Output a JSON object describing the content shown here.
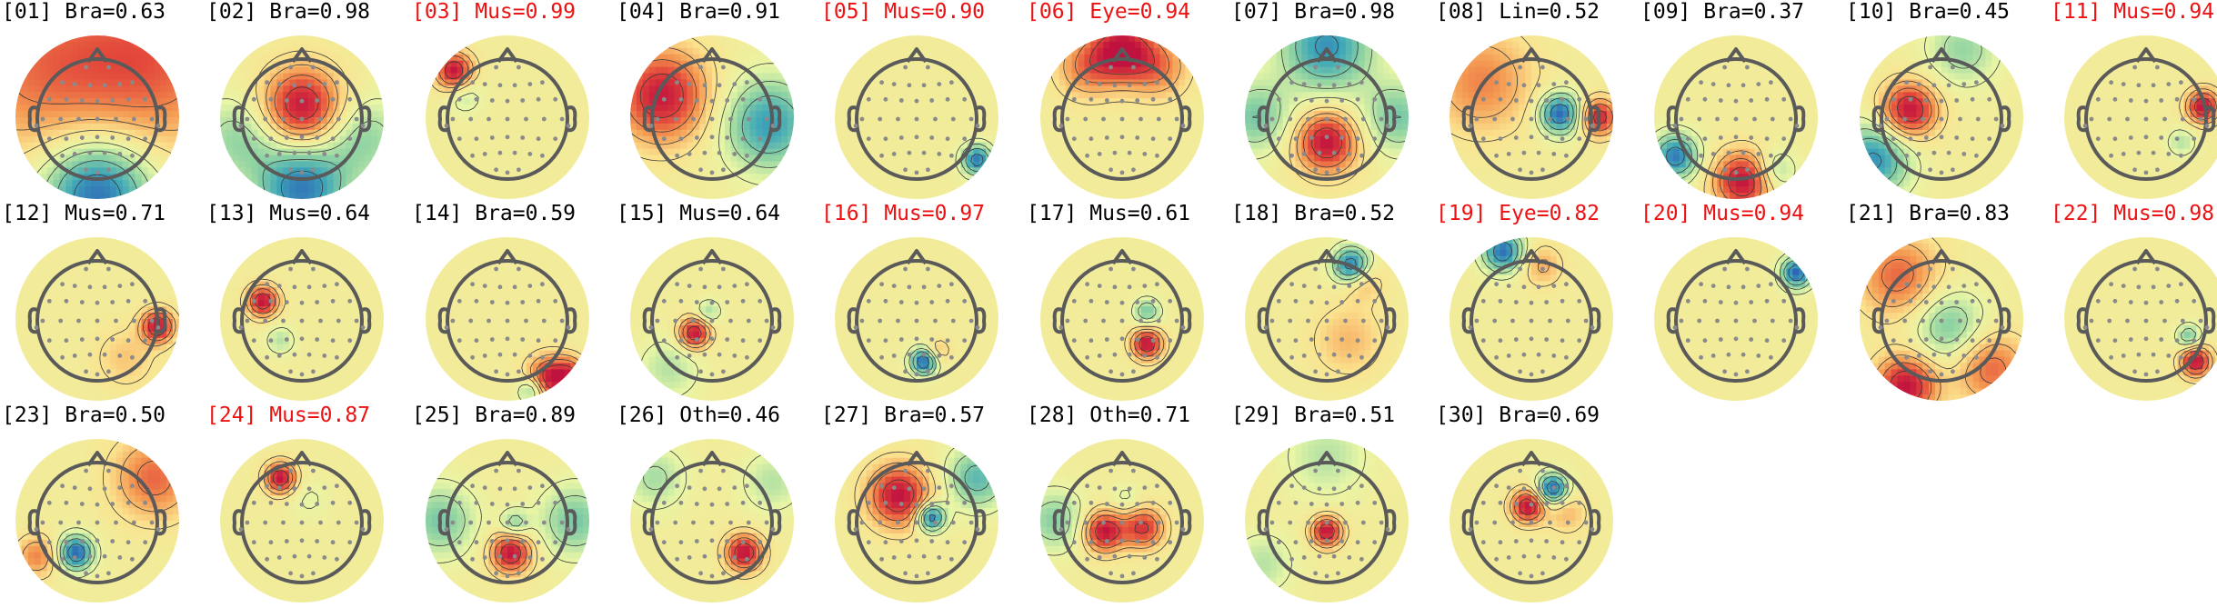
{
  "colors": {
    "label_default": "#000000",
    "label_flagged": "#ee1111",
    "sensor": "#8a8a8a",
    "head_outline": "#5a5a5a",
    "colormap": [
      "#2f64b7",
      "#3ea7b8",
      "#8fd3a3",
      "#e8f6a6",
      "#fbe28e",
      "#f49a52",
      "#e2463a",
      "#c0123f"
    ]
  },
  "components": [
    {
      "title": "[01] Bra=0.63",
      "flagged": false,
      "blobs": [
        {
          "dx": 0.8,
          "dy": -0.8,
          "v": 0.6,
          "s": 0.9
        },
        {
          "dx": -0.9,
          "dy": -0.7,
          "v": 0.5,
          "s": 0.9
        },
        {
          "dx": 0,
          "dy": 1.05,
          "v": -1.0,
          "s": 0.55
        }
      ]
    },
    {
      "title": "[02] Bra=0.98",
      "flagged": false,
      "blobs": [
        {
          "dx": 0.0,
          "dy": -0.15,
          "v": 1.0,
          "s": 0.38
        },
        {
          "dx": 0,
          "dy": 1.0,
          "v": -0.9,
          "s": 0.45
        },
        {
          "dx": -0.9,
          "dy": 0.3,
          "v": -0.4,
          "s": 0.4
        },
        {
          "dx": 0.9,
          "dy": 0.3,
          "v": -0.4,
          "s": 0.4
        }
      ]
    },
    {
      "title": "[03] Mus=0.99",
      "flagged": true,
      "blobs": [
        {
          "dx": -0.75,
          "dy": -0.65,
          "v": 1.0,
          "s": 0.18
        },
        {
          "dx": -0.6,
          "dy": -0.3,
          "v": -0.25,
          "s": 0.18
        }
      ]
    },
    {
      "title": "[04] Bra=0.91",
      "flagged": false,
      "blobs": [
        {
          "dx": -0.7,
          "dy": -0.3,
          "v": 0.95,
          "s": 0.45
        },
        {
          "dx": 0.8,
          "dy": 0.1,
          "v": -0.75,
          "s": 0.45
        }
      ]
    },
    {
      "title": "[05] Mus=0.90",
      "flagged": true,
      "blobs": [
        {
          "dx": 0.85,
          "dy": 0.6,
          "v": -0.9,
          "s": 0.15
        }
      ]
    },
    {
      "title": "[06] Eye=0.94",
      "flagged": true,
      "blobs": [
        {
          "dx": 0.0,
          "dy": -0.95,
          "v": 1.0,
          "s": 0.3
        },
        {
          "dx": -0.5,
          "dy": -0.7,
          "v": 0.5,
          "s": 0.3
        },
        {
          "dx": 0.5,
          "dy": -0.7,
          "v": 0.5,
          "s": 0.3
        }
      ]
    },
    {
      "title": "[07] Bra=0.98",
      "flagged": false,
      "blobs": [
        {
          "dx": 0.0,
          "dy": 0.35,
          "v": 1.0,
          "s": 0.3
        },
        {
          "dx": 0,
          "dy": -1.0,
          "v": -0.8,
          "s": 0.45
        },
        {
          "dx": -1.0,
          "dy": 0,
          "v": -0.5,
          "s": 0.35
        },
        {
          "dx": 1.0,
          "dy": 0,
          "v": -0.5,
          "s": 0.35
        }
      ]
    },
    {
      "title": "[08] Lin=0.52",
      "flagged": false,
      "blobs": [
        {
          "dx": 0.4,
          "dy": -0.05,
          "v": -1.0,
          "s": 0.2
        },
        {
          "dx": 0.95,
          "dy": 0.0,
          "v": 0.9,
          "s": 0.18
        },
        {
          "dx": -0.7,
          "dy": -0.5,
          "v": 0.5,
          "s": 0.5
        }
      ]
    },
    {
      "title": "[09] Bra=0.37",
      "flagged": false,
      "blobs": [
        {
          "dx": 0.1,
          "dy": 0.9,
          "v": 1.0,
          "s": 0.28
        },
        {
          "dx": -0.85,
          "dy": 0.55,
          "v": -0.9,
          "s": 0.22
        },
        {
          "dx": 0.55,
          "dy": 0.75,
          "v": -0.4,
          "s": 0.2
        }
      ]
    },
    {
      "title": "[10] Bra=0.45",
      "flagged": false,
      "blobs": [
        {
          "dx": -0.45,
          "dy": -0.1,
          "v": 1.0,
          "s": 0.27
        },
        {
          "dx": -0.95,
          "dy": 0.6,
          "v": -0.8,
          "s": 0.35
        },
        {
          "dx": 0.3,
          "dy": -0.95,
          "v": -0.4,
          "s": 0.35
        }
      ]
    },
    {
      "title": "[11] Mus=0.94",
      "flagged": true,
      "blobs": [
        {
          "dx": 0.8,
          "dy": -0.15,
          "v": 1.0,
          "s": 0.16
        },
        {
          "dx": 0.5,
          "dy": 0.35,
          "v": -0.3,
          "s": 0.14
        }
      ]
    },
    {
      "title": "[12] Mus=0.71",
      "flagged": false,
      "blobs": [
        {
          "dx": 0.85,
          "dy": 0.1,
          "v": 1.0,
          "s": 0.16
        },
        {
          "dx": 0.4,
          "dy": 0.55,
          "v": 0.25,
          "s": 0.3
        }
      ]
    },
    {
      "title": "[13] Mus=0.64",
      "flagged": false,
      "blobs": [
        {
          "dx": -0.55,
          "dy": -0.25,
          "v": 1.0,
          "s": 0.15
        },
        {
          "dx": -0.3,
          "dy": 0.3,
          "v": -0.3,
          "s": 0.14
        }
      ]
    },
    {
      "title": "[14] Bra=0.59",
      "flagged": false,
      "blobs": [
        {
          "dx": 0.6,
          "dy": 0.85,
          "v": 1.0,
          "s": 0.22
        },
        {
          "dx": 0.35,
          "dy": 1.0,
          "v": -0.6,
          "s": 0.14
        },
        {
          "dx": 0.9,
          "dy": 0.75,
          "v": 0.5,
          "s": 0.15
        }
      ]
    },
    {
      "title": "[15] Mus=0.64",
      "flagged": false,
      "blobs": [
        {
          "dx": -0.25,
          "dy": 0.2,
          "v": 1.0,
          "s": 0.15
        },
        {
          "dx": -0.05,
          "dy": -0.1,
          "v": -0.35,
          "s": 0.12
        },
        {
          "dx": -0.6,
          "dy": 0.7,
          "v": -0.3,
          "s": 0.3
        }
      ]
    },
    {
      "title": "[16] Mus=0.97",
      "flagged": true,
      "blobs": [
        {
          "dx": 0.1,
          "dy": 0.6,
          "v": -1.0,
          "s": 0.13
        },
        {
          "dx": 0.3,
          "dy": 0.45,
          "v": 0.3,
          "s": 0.12
        }
      ]
    },
    {
      "title": "[17] Mus=0.61",
      "flagged": false,
      "blobs": [
        {
          "dx": 0.35,
          "dy": 0.35,
          "v": 1.0,
          "s": 0.15
        },
        {
          "dx": 0.35,
          "dy": -0.1,
          "v": -0.5,
          "s": 0.13
        }
      ]
    },
    {
      "title": "[18] Bra=0.52",
      "flagged": false,
      "blobs": [
        {
          "dx": 0.35,
          "dy": -0.75,
          "v": -1.0,
          "s": 0.18
        },
        {
          "dx": 0.5,
          "dy": -0.55,
          "v": 0.35,
          "s": 0.2
        },
        {
          "dx": 0.3,
          "dy": 0.3,
          "v": 0.3,
          "s": 0.35
        }
      ]
    },
    {
      "title": "[19] Eye=0.82",
      "flagged": true,
      "blobs": [
        {
          "dx": -0.4,
          "dy": -0.95,
          "v": -0.95,
          "s": 0.2
        },
        {
          "dx": 0.15,
          "dy": -0.75,
          "v": 0.35,
          "s": 0.2
        }
      ]
    },
    {
      "title": "[20] Mus=0.94",
      "flagged": true,
      "blobs": [
        {
          "dx": 0.85,
          "dy": -0.65,
          "v": -1.0,
          "s": 0.15
        }
      ]
    },
    {
      "title": "[21] Bra=0.83",
      "flagged": false,
      "blobs": [
        {
          "dx": -0.5,
          "dy": 0.95,
          "v": 1.0,
          "s": 0.3
        },
        {
          "dx": -0.6,
          "dy": -0.6,
          "v": 0.6,
          "s": 0.4
        },
        {
          "dx": 0.7,
          "dy": 0.7,
          "v": 0.6,
          "s": 0.35
        },
        {
          "dx": 0.1,
          "dy": 0.1,
          "v": -0.5,
          "s": 0.35
        }
      ]
    },
    {
      "title": "[22] Mus=0.98",
      "flagged": true,
      "blobs": [
        {
          "dx": 0.7,
          "dy": 0.6,
          "v": 1.0,
          "s": 0.15
        },
        {
          "dx": 0.6,
          "dy": 0.25,
          "v": -0.5,
          "s": 0.12
        }
      ]
    },
    {
      "title": "[23] Bra=0.50",
      "flagged": false,
      "blobs": [
        {
          "dx": -0.3,
          "dy": 0.45,
          "v": -1.0,
          "s": 0.17
        },
        {
          "dx": 0.8,
          "dy": -0.6,
          "v": 0.6,
          "s": 0.4
        },
        {
          "dx": -0.85,
          "dy": 0.5,
          "v": 0.5,
          "s": 0.2
        }
      ]
    },
    {
      "title": "[24] Mus=0.87",
      "flagged": true,
      "blobs": [
        {
          "dx": -0.3,
          "dy": -0.6,
          "v": 1.0,
          "s": 0.15
        },
        {
          "dx": 0.1,
          "dy": -0.3,
          "v": -0.15,
          "s": 0.2
        }
      ]
    },
    {
      "title": "[25] Bra=0.89",
      "flagged": false,
      "blobs": [
        {
          "dx": 0.05,
          "dy": 0.45,
          "v": 1.0,
          "s": 0.2
        },
        {
          "dx": 0.1,
          "dy": 0.05,
          "v": -0.45,
          "s": 0.14
        },
        {
          "dx": -0.95,
          "dy": 0.0,
          "v": -0.5,
          "s": 0.35
        },
        {
          "dx": 0.95,
          "dy": 0.0,
          "v": -0.5,
          "s": 0.35
        }
      ]
    },
    {
      "title": "[26] Oth=0.46",
      "flagged": false,
      "blobs": [
        {
          "dx": 0.45,
          "dy": 0.45,
          "v": 1.0,
          "s": 0.18
        },
        {
          "dx": -0.8,
          "dy": -0.6,
          "v": -0.35,
          "s": 0.3
        },
        {
          "dx": 0.85,
          "dy": -0.55,
          "v": -0.3,
          "s": 0.3
        }
      ]
    },
    {
      "title": "[27] Bra=0.57",
      "flagged": false,
      "blobs": [
        {
          "dx": -0.25,
          "dy": -0.35,
          "v": 1.0,
          "s": 0.3
        },
        {
          "dx": 0.2,
          "dy": -0.05,
          "v": -1.0,
          "s": 0.14
        },
        {
          "dx": 0.85,
          "dy": -0.6,
          "v": -0.6,
          "s": 0.3
        }
      ]
    },
    {
      "title": "[28] Oth=0.71",
      "flagged": false,
      "blobs": [
        {
          "dx": -0.25,
          "dy": 0.15,
          "v": 1.0,
          "s": 0.2
        },
        {
          "dx": 0.3,
          "dy": 0.1,
          "v": 0.8,
          "s": 0.2
        },
        {
          "dx": 0.05,
          "dy": -0.3,
          "v": -0.2,
          "s": 0.15
        },
        {
          "dx": -0.95,
          "dy": 0.0,
          "v": -0.45,
          "s": 0.3
        }
      ]
    },
    {
      "title": "[29] Bra=0.51",
      "flagged": false,
      "blobs": [
        {
          "dx": 0.0,
          "dy": 0.15,
          "v": 1.0,
          "s": 0.15
        },
        {
          "dx": 0,
          "dy": -0.9,
          "v": -0.3,
          "s": 0.4
        },
        {
          "dx": -0.9,
          "dy": 0.6,
          "v": -0.3,
          "s": 0.3
        }
      ]
    },
    {
      "title": "[30] Bra=0.69",
      "flagged": false,
      "blobs": [
        {
          "dx": 0.3,
          "dy": -0.45,
          "v": -1.0,
          "s": 0.15
        },
        {
          "dx": -0.05,
          "dy": -0.2,
          "v": 1.0,
          "s": 0.16
        },
        {
          "dx": 0.5,
          "dy": -0.1,
          "v": 0.3,
          "s": 0.2
        }
      ]
    }
  ]
}
